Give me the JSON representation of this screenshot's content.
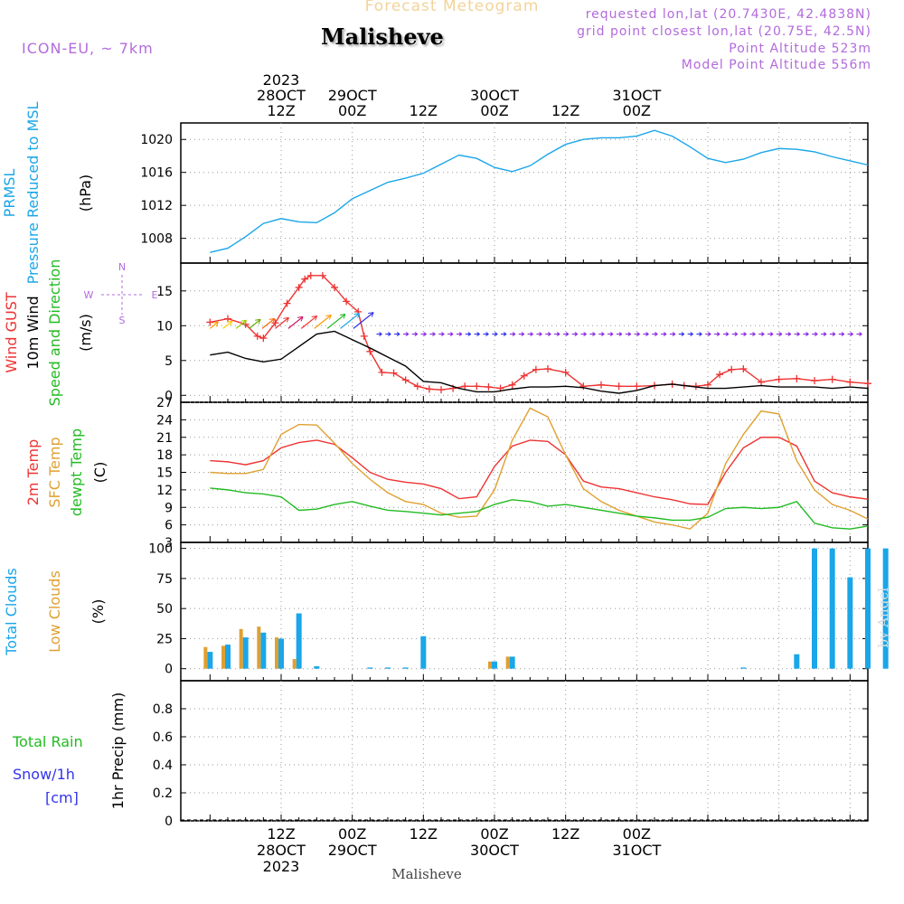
{
  "header": {
    "title": "Forecast Meteogram",
    "location": "Malisheve",
    "model": "ICON-EU, ~ 7km",
    "requested": "requested lon,lat (20.7430E, 42.4838N)",
    "gridpoint": "grid point closest lon,lat (20.75E, 42.5N)",
    "point_alt": "Point Altitude 523m",
    "model_alt": "Model Point Altitude 556m",
    "footer_location": "Malisheve",
    "credit": "by Angel"
  },
  "colors": {
    "pressure": "#1aa6e8",
    "gust": "#ee3333",
    "wind": "#000000",
    "direction": "#22bb22",
    "temp2m": "#ee3333",
    "sfc": "#e0a030",
    "dewpt": "#22bb22",
    "total_clouds": "#1aa6e8",
    "low_clouds": "#e0a030",
    "rain": "#22bb22",
    "snow": "#3333ee",
    "meta": "#b36bdc"
  },
  "chart_data": [
    {
      "type": "line",
      "panel": "pressure",
      "label_lines": [
        {
          "text": "PRMSL",
          "color": "#1aa6e8"
        },
        {
          "text": "Pressure Reduced to MSL",
          "color": "#1aa6e8"
        }
      ],
      "unit": "(hPa)",
      "ylim": [
        1005,
        1022
      ],
      "yticks": [
        1008,
        1012,
        1016,
        1020
      ],
      "ytick_labels": [
        "1008",
        "1012",
        "1016",
        "1020"
      ],
      "grid": true,
      "series": [
        {
          "color": "#1aa6e8",
          "x": [
            0,
            3,
            6,
            9,
            12,
            15,
            18,
            21,
            24,
            27,
            30,
            33,
            36,
            39,
            42,
            45,
            48,
            51,
            54,
            57,
            60,
            63,
            66,
            69,
            72,
            75,
            78,
            81,
            84,
            87,
            90,
            93,
            96,
            99,
            102,
            105,
            108,
            111,
            114
          ],
          "y": [
            1006.3,
            1006.8,
            1008.2,
            1009.8,
            1010.4,
            1010.0,
            1009.9,
            1011.1,
            1012.8,
            1013.8,
            1014.8,
            1015.3,
            1015.9,
            1017.0,
            1018.1,
            1017.7,
            1016.6,
            1016.1,
            1016.8,
            1018.2,
            1019.4,
            1020.0,
            1020.2,
            1020.2,
            1020.4,
            1021.1,
            1020.4,
            1019.1,
            1017.7,
            1017.2,
            1017.6,
            1018.4,
            1018.9,
            1018.8,
            1018.5,
            1017.9,
            1017.4,
            1016.9,
            1016.5
          ]
        }
      ]
    },
    {
      "type": "line",
      "panel": "wind",
      "label_lines": [
        {
          "text": "Wind GUST",
          "color": "#ee3333"
        },
        {
          "text": "10m Wind",
          "color": "#000000"
        },
        {
          "text": "Speed and Direction",
          "color": "#22bb22"
        }
      ],
      "unit": "(m/s)",
      "compass": {
        "n": "N",
        "w": "W",
        "e": "E",
        "s": "S"
      },
      "ylim": [
        -1,
        19
      ],
      "yticks": [
        0,
        5,
        10,
        15
      ],
      "ytick_labels": [
        "0",
        "5",
        "10",
        "15"
      ],
      "grid": true,
      "series": [
        {
          "name": "Wind GUST",
          "color": "#ee3333",
          "marker": "+",
          "x": [
            0,
            3,
            6,
            8,
            9,
            11,
            13,
            15,
            16,
            17,
            19,
            21,
            23,
            25,
            26,
            27,
            29,
            31,
            33,
            35,
            37,
            39,
            41,
            43,
            45,
            47,
            49,
            51,
            53,
            55,
            57,
            60,
            63,
            66,
            69,
            72,
            75,
            78,
            80,
            82,
            84,
            86,
            88,
            90,
            93,
            96,
            99,
            102,
            105,
            108,
            111,
            114
          ],
          "y": [
            10.5,
            11.0,
            10.2,
            8.5,
            8.2,
            10.4,
            13.2,
            15.5,
            16.7,
            17.2,
            17.2,
            15.5,
            13.5,
            12.0,
            8.5,
            6.3,
            3.3,
            3.2,
            2.2,
            1.3,
            0.9,
            0.8,
            1.0,
            1.3,
            1.3,
            1.2,
            1.0,
            1.5,
            2.8,
            3.7,
            3.8,
            3.3,
            1.3,
            1.5,
            1.3,
            1.3,
            1.4,
            1.6,
            1.4,
            1.3,
            1.5,
            3.0,
            3.7,
            3.8,
            1.9,
            2.3,
            2.4,
            2.1,
            2.3,
            1.9,
            1.7,
            1.9
          ]
        },
        {
          "name": "10m Wind",
          "color": "#000000",
          "x": [
            0,
            3,
            6,
            9,
            12,
            15,
            18,
            21,
            24,
            27,
            30,
            33,
            36,
            39,
            42,
            45,
            48,
            51,
            54,
            57,
            60,
            63,
            66,
            69,
            72,
            75,
            78,
            81,
            84,
            87,
            90,
            93,
            96,
            99,
            102,
            105,
            108,
            111,
            114
          ],
          "y": [
            5.8,
            6.2,
            5.3,
            4.8,
            5.2,
            7.0,
            8.8,
            9.2,
            8.0,
            6.8,
            5.5,
            4.2,
            2.0,
            1.8,
            1.0,
            0.5,
            0.5,
            0.9,
            1.2,
            1.2,
            1.3,
            1.1,
            0.6,
            0.3,
            0.7,
            1.4,
            1.6,
            1.3,
            1.0,
            1.0,
            1.2,
            1.4,
            1.2,
            1.2,
            1.2,
            1.0,
            1.2,
            1.0,
            1.0
          ]
        }
      ]
    },
    {
      "type": "line",
      "panel": "temperature",
      "label_lines": [
        {
          "text": "2m Temp",
          "color": "#ee3333"
        },
        {
          "text": "SFC Temp",
          "color": "#e0a030"
        },
        {
          "text": "dewpt Temp",
          "color": "#22bb22"
        }
      ],
      "unit": "(C)",
      "ylim": [
        3,
        27
      ],
      "yticks": [
        3,
        6,
        9,
        12,
        15,
        18,
        21,
        24,
        27
      ],
      "ytick_labels": [
        "3",
        "6",
        "9",
        "12",
        "15",
        "18",
        "21",
        "24",
        "27"
      ],
      "grid": true,
      "series": [
        {
          "name": "2m Temp",
          "color": "#ee3333",
          "x": [
            0,
            3,
            6,
            9,
            12,
            15,
            18,
            21,
            24,
            27,
            30,
            33,
            36,
            39,
            42,
            45,
            48,
            51,
            54,
            57,
            60,
            63,
            66,
            69,
            72,
            75,
            78,
            81,
            84,
            87,
            90,
            93,
            96,
            99,
            102,
            105,
            108,
            111,
            114
          ],
          "y": [
            17.0,
            16.8,
            16.3,
            17.0,
            19.2,
            20.1,
            20.5,
            19.8,
            17.5,
            15.0,
            13.8,
            13.3,
            13.0,
            12.2,
            10.5,
            10.8,
            16.0,
            19.5,
            20.5,
            20.3,
            18.0,
            13.5,
            12.5,
            12.2,
            11.5,
            10.8,
            10.3,
            9.6,
            9.5,
            15.0,
            19.2,
            21.0,
            21.0,
            19.5,
            13.5,
            11.5,
            10.8,
            10.4,
            10.0
          ]
        },
        {
          "name": "SFC Temp",
          "color": "#e0a030",
          "x": [
            0,
            3,
            6,
            9,
            12,
            15,
            18,
            21,
            24,
            27,
            30,
            33,
            36,
            39,
            42,
            45,
            48,
            51,
            54,
            57,
            60,
            63,
            66,
            69,
            72,
            75,
            78,
            81,
            84,
            87,
            90,
            93,
            96,
            99,
            102,
            105,
            108,
            111,
            114
          ],
          "y": [
            15.0,
            14.8,
            14.8,
            15.5,
            21.5,
            23.2,
            23.1,
            20.0,
            16.5,
            13.8,
            11.5,
            10.0,
            9.5,
            8.0,
            7.3,
            7.5,
            12.0,
            20.5,
            26.0,
            24.5,
            18.0,
            12.2,
            10.0,
            8.5,
            7.5,
            6.5,
            6.0,
            5.3,
            8.0,
            16.5,
            21.5,
            25.5,
            25.0,
            17.0,
            12.0,
            9.5,
            8.5,
            7.0,
            6.5
          ]
        },
        {
          "name": "dewpt Temp",
          "color": "#22bb22",
          "x": [
            0,
            3,
            6,
            9,
            12,
            15,
            18,
            21,
            24,
            27,
            30,
            33,
            36,
            39,
            42,
            45,
            48,
            51,
            54,
            57,
            60,
            63,
            66,
            69,
            72,
            75,
            78,
            81,
            84,
            87,
            90,
            93,
            96,
            99,
            102,
            105,
            108,
            111,
            114
          ],
          "y": [
            12.3,
            12.0,
            11.5,
            11.3,
            10.8,
            8.5,
            8.7,
            9.5,
            10.0,
            9.2,
            8.5,
            8.3,
            8.0,
            7.7,
            8.0,
            8.3,
            9.5,
            10.3,
            10.0,
            9.2,
            9.5,
            9.0,
            8.5,
            8.0,
            7.5,
            7.2,
            6.8,
            6.8,
            7.3,
            8.8,
            9.0,
            8.8,
            9.0,
            10.0,
            6.3,
            5.5,
            5.3,
            5.8,
            4.5
          ]
        }
      ]
    },
    {
      "type": "bar",
      "panel": "clouds",
      "label_lines": [
        {
          "text": "Total Clouds",
          "color": "#1aa6e8"
        },
        {
          "text": "Low Clouds",
          "color": "#e0a030"
        }
      ],
      "unit": "(%)",
      "ylim": [
        -10,
        105
      ],
      "yticks": [
        0,
        25,
        50,
        75,
        100
      ],
      "ytick_labels": [
        "0",
        "25",
        "50",
        "75",
        "100"
      ],
      "grid": true,
      "series": [
        {
          "name": "Total Clouds",
          "color": "#1aa6e8",
          "x": [
            0,
            3,
            6,
            9,
            12,
            15,
            18,
            21,
            24,
            27,
            30,
            33,
            36,
            39,
            42,
            45,
            48,
            51,
            54,
            57,
            60,
            63,
            66,
            69,
            72,
            75,
            78,
            81,
            84,
            87,
            90,
            93,
            96,
            99,
            102,
            105,
            108,
            111,
            114
          ],
          "y": [
            14,
            20,
            26,
            30,
            25,
            46,
            2,
            0,
            0,
            1,
            1,
            1,
            27,
            0,
            0,
            0,
            6,
            10,
            0,
            0,
            0,
            0,
            0,
            0,
            0,
            0,
            0,
            0,
            0,
            0,
            1,
            0,
            0,
            12,
            100,
            100,
            76,
            100,
            100
          ]
        },
        {
          "name": "Low Clouds",
          "color": "#e0a030",
          "x": [
            0,
            3,
            6,
            9,
            12,
            15,
            18,
            21,
            24,
            27,
            30,
            33,
            36,
            39,
            42,
            45,
            48,
            51,
            54,
            57,
            60,
            63,
            66,
            69,
            72,
            75,
            78,
            81,
            84,
            87,
            90,
            93,
            96,
            99,
            102,
            105,
            108,
            111,
            114
          ],
          "y": [
            18,
            19,
            33,
            35,
            26,
            8,
            0,
            0,
            0,
            0,
            0,
            0,
            0,
            0,
            0,
            0,
            6,
            10,
            0,
            0,
            0,
            0,
            0,
            0,
            0,
            0,
            0,
            0,
            0,
            0,
            0,
            0,
            0,
            0,
            0,
            0,
            0,
            0,
            0
          ]
        }
      ]
    },
    {
      "type": "bar",
      "panel": "precipitation",
      "label_lines": [
        {
          "text": "Total   Rain",
          "color": "#22bb22"
        },
        {
          "text": "Snow/1h",
          "color": "#3333ee"
        },
        {
          "text": "[cm]",
          "color": "#3333ee"
        }
      ],
      "unit": "1hr Precip (mm)",
      "ylim": [
        0,
        1
      ],
      "yticks": [
        0,
        0.2,
        0.4,
        0.6,
        0.8
      ],
      "ytick_labels": [
        "0",
        "0.2",
        "0.4",
        "0.6",
        "0.8"
      ],
      "grid": true,
      "series": [
        {
          "name": "Total Rain",
          "color": "#22bb22",
          "x": [],
          "y": []
        }
      ]
    }
  ],
  "time_axis": {
    "top_labels": [
      {
        "hour": 12,
        "lines": [
          "2023",
          "28OCT",
          "12Z"
        ]
      },
      {
        "hour": 24,
        "lines": [
          "29OCT",
          "00Z"
        ]
      },
      {
        "hour": 36,
        "lines": [
          "12Z"
        ]
      },
      {
        "hour": 48,
        "lines": [
          "30OCT",
          "00Z"
        ]
      },
      {
        "hour": 60,
        "lines": [
          "12Z"
        ]
      },
      {
        "hour": 72,
        "lines": [
          "31OCT",
          "00Z"
        ]
      }
    ],
    "bottom_labels": [
      {
        "hour": 12,
        "lines": [
          "12Z",
          "28OCT",
          "2023"
        ]
      },
      {
        "hour": 24,
        "lines": [
          "00Z",
          "29OCT"
        ]
      },
      {
        "hour": 36,
        "lines": [
          "12Z"
        ]
      },
      {
        "hour": 48,
        "lines": [
          "00Z",
          "30OCT"
        ]
      },
      {
        "hour": 60,
        "lines": [
          "12Z"
        ]
      },
      {
        "hour": 72,
        "lines": [
          "00Z",
          "31OCT"
        ]
      }
    ]
  }
}
